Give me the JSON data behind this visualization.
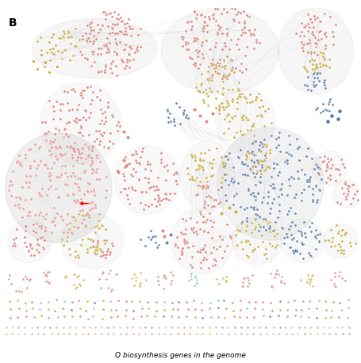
{
  "title": "B",
  "xlabel": "Q biosynthesis genes in the genome",
  "background_color": "#ffffff",
  "node_colors": {
    "salmon": "#D97B72",
    "gold": "#C8A832",
    "blue": "#5577AA",
    "light_blue": "#90B8D4",
    "pink_light": "#E8A09A"
  },
  "edge_color": "#BBBBBB",
  "figsize": [
    4.55,
    4.58
  ],
  "dpi": 100
}
